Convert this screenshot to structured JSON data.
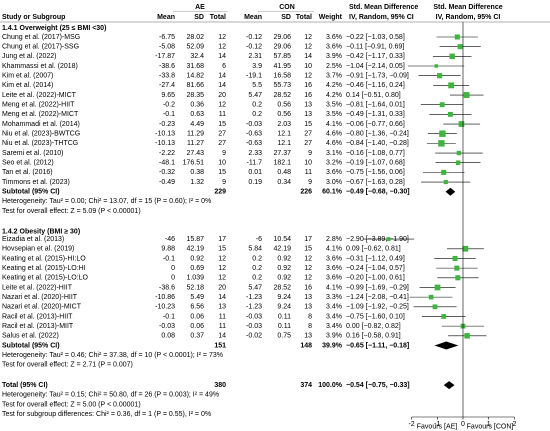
{
  "header": {
    "ae": "AE",
    "con": "CON",
    "smd_title": "Std. Mean Difference",
    "smd_sub": "IV, Random, 95% CI",
    "plot_title": "Std. Mean Difference",
    "plot_sub": "IV, Random, 95% CI",
    "columns": [
      "Study or Subgroup",
      "Mean",
      "SD",
      "Total",
      "Mean",
      "SD",
      "Total",
      "Weight"
    ]
  },
  "groups": [
    {
      "title": "1.4.1 Overweight (25 ≤ BMI <30)",
      "studies": [
        {
          "name": "Chung et al. (2017)-MSG",
          "ae": [
            -6.75,
            28.02,
            12
          ],
          "con": [
            -0.12,
            29.06,
            12
          ],
          "weight": {
            "value": 3.6,
            "label": "3.6%"
          },
          "ci": {
            "value": -0.22,
            "lower": -1.03,
            "upper": 0.58,
            "label": "−0.22 [−1.03, 0.58]"
          }
        },
        {
          "name": "Chung et al. (2017)-SSG",
          "ae": [
            -5.08,
            52.09,
            12
          ],
          "con": [
            -0.12,
            29.06,
            12
          ],
          "weight": {
            "value": 3.6,
            "label": "3.6%"
          },
          "ci": {
            "value": -0.11,
            "lower": -0.91,
            "upper": 0.69,
            "label": "−0.11 [−0.91, 0.69]"
          }
        },
        {
          "name": "Jung et al. (2022)",
          "ae": [
            -17.87,
            32.4,
            14
          ],
          "con": [
            2.31,
            57.85,
            14
          ],
          "weight": {
            "value": 3.9,
            "label": "3.9%"
          },
          "ci": {
            "value": -0.42,
            "lower": -1.17,
            "upper": 0.33,
            "label": "−0.42 [−1.17, 0.33]"
          }
        },
        {
          "name": "Khammassi et al. (2018)",
          "ae": [
            -38.6,
            31.68,
            6
          ],
          "con": [
            3.9,
            41.95,
            10
          ],
          "weight": {
            "value": 2.5,
            "label": "2.5%"
          },
          "ci": {
            "value": -1.04,
            "lower": -2.14,
            "upper": 0.05,
            "label": "−1.04 [−2.14, 0.05]"
          }
        },
        {
          "name": "Kim et al. (2007)",
          "ae": [
            -33.8,
            14.82,
            14
          ],
          "con": [
            -19.1,
            16.58,
            12
          ],
          "weight": {
            "value": 3.7,
            "label": "3.7%"
          },
          "ci": {
            "value": -0.91,
            "lower": -1.73,
            "upper": -0.09,
            "label": "−0.91 [−1.73, −0.09]"
          }
        },
        {
          "name": "Kim et al. (2014)",
          "ae": [
            -27.4,
            81.66,
            14
          ],
          "con": [
            5.5,
            55.73,
            16
          ],
          "weight": {
            "value": 4.2,
            "label": "4.2%"
          },
          "ci": {
            "value": -0.46,
            "lower": -1.16,
            "upper": 0.24,
            "label": "−0.46 [−1.16, 0.24]"
          }
        },
        {
          "name": "Leite et al. (2022)-MICT",
          "ae": [
            9.65,
            28.35,
            20
          ],
          "con": [
            5.47,
            28.52,
            16
          ],
          "weight": {
            "value": 4.2,
            "label": "4.2%"
          },
          "ci": {
            "value": 0.14,
            "lower": -0.51,
            "upper": 0.8,
            "label": "0.14 [−0.51, 0.80]"
          }
        },
        {
          "name": "Meng et al. (2022)-HIIT",
          "ae": [
            -0.2,
            0.36,
            12
          ],
          "con": [
            0.2,
            0.56,
            13
          ],
          "weight": {
            "value": 3.5,
            "label": "3.5%"
          },
          "ci": {
            "value": -0.81,
            "lower": -1.64,
            "upper": 0.01,
            "label": "−0.81 [−1.64, 0.01]"
          }
        },
        {
          "name": "Meng et al. (2022)-MICT",
          "ae": [
            -0.1,
            0.63,
            11
          ],
          "con": [
            0.2,
            0.56,
            13
          ],
          "weight": {
            "value": 3.5,
            "label": "3.5%"
          },
          "ci": {
            "value": -0.49,
            "lower": -1.31,
            "upper": 0.33,
            "label": "−0.49 [−1.31, 0.33]"
          }
        },
        {
          "name": "Mohammadi et al. (2014)",
          "ae": [
            -0.23,
            4.49,
            15
          ],
          "con": [
            -0.03,
            2.03,
            15
          ],
          "weight": {
            "value": 4.1,
            "label": "4.1%"
          },
          "ci": {
            "value": -0.06,
            "lower": -0.77,
            "upper": 0.66,
            "label": "−0.06 [−0.77, 0.66]"
          }
        },
        {
          "name": "Niu et al. (2023)-BWTCG",
          "ae": [
            -10.13,
            11.29,
            27
          ],
          "con": [
            -0.63,
            12.1,
            27
          ],
          "weight": {
            "value": 4.6,
            "label": "4.6%"
          },
          "ci": {
            "value": -0.8,
            "lower": -1.36,
            "upper": -0.24,
            "label": "−0.80 [−1.36, −0.24]"
          }
        },
        {
          "name": "Niu et al. (2023)-THTCG",
          "ae": [
            -10.13,
            11.27,
            27
          ],
          "con": [
            -0.63,
            12.1,
            27
          ],
          "weight": {
            "value": 4.6,
            "label": "4.6%"
          },
          "ci": {
            "value": -0.84,
            "lower": -1.4,
            "upper": -0.28,
            "label": "−0.84 [−1.40, −0.28]"
          }
        },
        {
          "name": "Saremi et al. (2010)",
          "ae": [
            -2.22,
            27.43,
            9
          ],
          "con": [
            2.33,
            27.37,
            9
          ],
          "weight": {
            "value": 3.1,
            "label": "3.1%"
          },
          "ci": {
            "value": -0.16,
            "lower": -1.08,
            "upper": 0.77,
            "label": "−0.16 [−1.08, 0.77]"
          }
        },
        {
          "name": "Seo et al. (2012)",
          "ae": [
            -48.1,
            176.51,
            10
          ],
          "con": [
            -11.7,
            182.1,
            10
          ],
          "weight": {
            "value": 3.2,
            "label": "3.2%"
          },
          "ci": {
            "value": -0.19,
            "lower": -1.07,
            "upper": 0.68,
            "label": "−0.19 [−1.07, 0.68]"
          }
        },
        {
          "name": "Tan et al. (2016)",
          "ae": [
            -0.32,
            0.38,
            15
          ],
          "con": [
            0.01,
            0.48,
            11
          ],
          "weight": {
            "value": 3.6,
            "label": "3.6%"
          },
          "ci": {
            "value": -0.75,
            "lower": -1.56,
            "upper": 0.06,
            "label": "−0.75 [−1.56, 0.06]"
          }
        },
        {
          "name": "Timmons et al. (2023)",
          "ae": [
            -0.49,
            1.32,
            9
          ],
          "con": [
            0.19,
            0.34,
            9
          ],
          "weight": {
            "value": 3.0,
            "label": "3.0%"
          },
          "ci": {
            "value": -0.67,
            "lower": -1.63,
            "upper": 0.28,
            "label": "−0.67 [−1.63, 0.28]"
          }
        }
      ],
      "subtotal": {
        "label": "Subtotal (95% CI)",
        "ae_total": 229,
        "con_total": 226,
        "weight": "60.1%",
        "ci": {
          "value": -0.49,
          "lower": -0.68,
          "upper": -0.3,
          "label": "−0.49 [−0.68, −0.30]"
        }
      },
      "heterogeneity": "Heterogeneity: Tau² = 0.00; Chi² = 13.07, df = 15 (P = 0.60); I² = 0%",
      "effect": "Test for overall effect: Z = 5.09 (P < 0.00001)"
    },
    {
      "title": "1.4.2 Obesity (BMI ≥ 30)",
      "studies": [
        {
          "name": "Eizadia et al. (2013)",
          "ae": [
            -46,
            15.87,
            17
          ],
          "con": [
            -6,
            10.54,
            17
          ],
          "weight": {
            "value": 2.8,
            "label": "2.8%"
          },
          "ci": {
            "value": -2.9,
            "lower": -3.89,
            "upper": -1.9,
            "label": "−2.90 [−3.89, −1.90]"
          }
        },
        {
          "name": "Hovsepian et al. (2019)",
          "ae": [
            9.88,
            42.19,
            15
          ],
          "con": [
            5.84,
            42.19,
            15
          ],
          "weight": {
            "value": 4.1,
            "label": "4.1%"
          },
          "ci": {
            "value": 0.09,
            "lower": -0.62,
            "upper": 0.81,
            "label": "0.09 [−0.62, 0.81]"
          }
        },
        {
          "name": "Keating et al. (2015)-HI:LO",
          "ae": [
            -0.1,
            0.92,
            12
          ],
          "con": [
            0.2,
            0.92,
            12
          ],
          "weight": {
            "value": 3.6,
            "label": "3.6%"
          },
          "ci": {
            "value": -0.31,
            "lower": -1.12,
            "upper": 0.49,
            "label": "−0.31 [−1.12, 0.49]"
          }
        },
        {
          "name": "Keating et al. (2015)-LO:HI",
          "ae": [
            0,
            0.69,
            12
          ],
          "con": [
            0.2,
            0.92,
            12
          ],
          "weight": {
            "value": 3.6,
            "label": "3.6%"
          },
          "ci": {
            "value": -0.24,
            "lower": -1.04,
            "upper": 0.57,
            "label": "−0.24 [−1.04, 0.57]"
          }
        },
        {
          "name": "Keating et al. (2015)-LO:LO",
          "ae": [
            0,
            1.039,
            12
          ],
          "con": [
            0.2,
            0.92,
            12
          ],
          "weight": {
            "value": 3.6,
            "label": "3.6%"
          },
          "ci": {
            "value": -0.2,
            "lower": -1,
            "upper": 0.61,
            "label": "−0.20 [−1.00, 0.61]"
          }
        },
        {
          "name": "Leite et al. (2022)-HIIT",
          "ae": [
            -38.6,
            52.18,
            20
          ],
          "con": [
            5.47,
            28.52,
            16
          ],
          "weight": {
            "value": 4.1,
            "label": "4.1%"
          },
          "ci": {
            "value": -0.99,
            "lower": -1.69,
            "upper": -0.29,
            "label": "−0.99 [−1.69, −0.29]"
          }
        },
        {
          "name": "Nazari et al. (2020)-HIIT",
          "ae": [
            -10.86,
            5.49,
            14
          ],
          "con": [
            -1.23,
            9.24,
            13
          ],
          "weight": {
            "value": 3.3,
            "label": "3.3%"
          },
          "ci": {
            "value": -1.24,
            "lower": -2.08,
            "upper": -0.41,
            "label": "−1.24 [−2.08, −0.41]"
          }
        },
        {
          "name": "Nazari et al. (2020)-MICT",
          "ae": [
            -10.23,
            6.56,
            13
          ],
          "con": [
            -1.23,
            9.24,
            13
          ],
          "weight": {
            "value": 3.4,
            "label": "3.4%"
          },
          "ci": {
            "value": -1.09,
            "lower": -1.92,
            "upper": -0.25,
            "label": "−1.09 [−1.92, −0.25]"
          }
        },
        {
          "name": "Racil et al. (2013)-HIIT",
          "ae": [
            -0.1,
            0.06,
            11
          ],
          "con": [
            -0.03,
            0.11,
            8
          ],
          "weight": {
            "value": 3.4,
            "label": "3.4%"
          },
          "ci": {
            "value": -0.75,
            "lower": -1.6,
            "upper": 0.1,
            "label": "−0.75 [−1.60, 0.10]"
          }
        },
        {
          "name": "Racil et al. (2013)-MIIT",
          "ae": [
            -0.03,
            0.06,
            11
          ],
          "con": [
            -0.03,
            0.11,
            8
          ],
          "weight": {
            "value": 3.4,
            "label": "3.4%"
          },
          "ci": {
            "value": 0,
            "lower": -0.82,
            "upper": 0.82,
            "label": "0.00 [−0.82, 0.82]"
          }
        },
        {
          "name": "Salus et al. (2022)",
          "ae": [
            0.08,
            0.37,
            14
          ],
          "con": [
            -0.02,
            0.75,
            13
          ],
          "weight": {
            "value": 3.9,
            "label": "3.9%"
          },
          "ci": {
            "value": 0.16,
            "lower": -0.58,
            "upper": 0.91,
            "label": "0.16 [−0.58, 0.91]"
          }
        }
      ],
      "subtotal": {
        "label": "Subtotal (95% CI)",
        "ae_total": 151,
        "con_total": 148,
        "weight": "39.9%",
        "ci": {
          "value": -0.65,
          "lower": -1.11,
          "upper": -0.18,
          "label": "−0.65 [−1.11, −0.18]"
        }
      },
      "heterogeneity": "Heterogeneity: Tau² = 0.46; Chi² = 37.38, df = 10 (P < 0.0001); I² = 73%",
      "effect": "Test for overall effect: Z = 2.71 (P = 0.007)"
    }
  ],
  "total": {
    "label": "Total (95% CI)",
    "ae_total": 380,
    "con_total": 374,
    "weight": "100.0%",
    "ci": {
      "value": -0.54,
      "lower": -0.75,
      "upper": -0.33,
      "label": "−0.54 [−0.75, −0.33]"
    },
    "heterogeneity": "Heterogeneity: Tau² = 0.15; Chi² = 50.80, df = 26 (P = 0.003); I² = 49%",
    "effect": "Test for overall effect: Z = 5.00 (P < 0.00001)",
    "subgroup": "Test for subgroup differences: Chi² = 0.36, df = 1 (P = 0.55), I² = 0%"
  },
  "axis": {
    "ticks": [
      -2,
      -1,
      0,
      1,
      2
    ],
    "favours": [
      "Favours [AE]",
      "Favours [CON]"
    ]
  }
}
